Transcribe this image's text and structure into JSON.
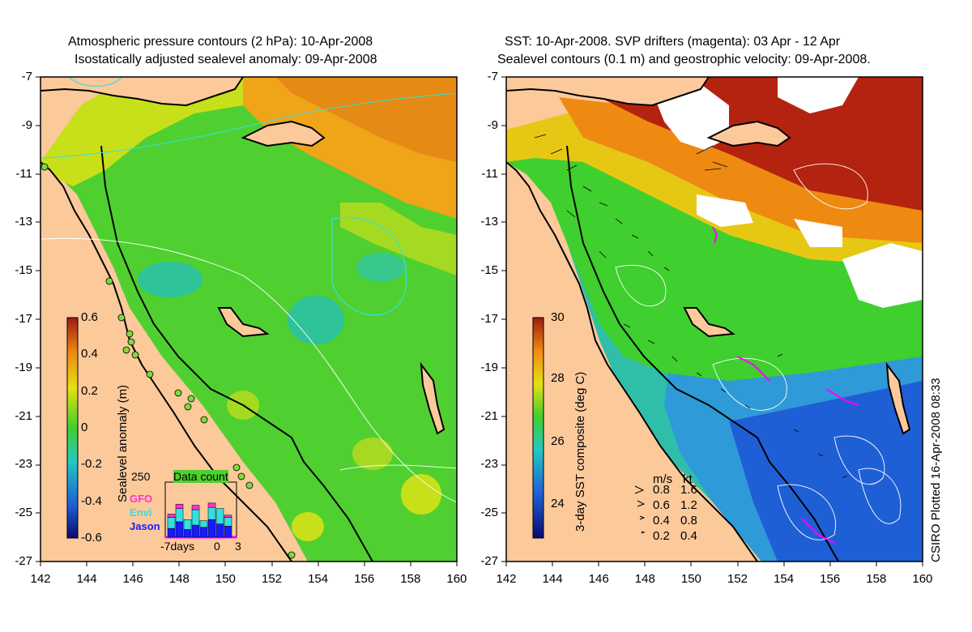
{
  "left_panel": {
    "title_line1": "Atmospheric pressure contours (2 hPa): 10-Apr-2008",
    "title_line2": "Isostatically adjusted sealevel anomaly: 09-Apr-2008",
    "colorbar_label": "Sealevel anomaly (m)",
    "colorbar_ticks": [
      "0.6",
      "0.4",
      "0.2",
      "0",
      "-0.2",
      "-0.4",
      "-0.6"
    ],
    "inset": {
      "title": "Data count",
      "ymax_label": "250",
      "series": [
        {
          "name": "GFO",
          "color": "#ff33cc"
        },
        {
          "name": "Envi",
          "color": "#33e0e0"
        },
        {
          "name": "Jason",
          "color": "#1a1aff"
        }
      ],
      "x_labels": [
        "-7days",
        "0",
        "3"
      ],
      "bars": [
        {
          "jason": 40,
          "envi": 50,
          "gfo": 15
        },
        {
          "jason": 70,
          "envi": 60,
          "gfo": 20
        },
        {
          "jason": 35,
          "envi": 45,
          "gfo": 0
        },
        {
          "jason": 55,
          "envi": 70,
          "gfo": 20
        },
        {
          "jason": 45,
          "envi": 30,
          "gfo": 0
        },
        {
          "jason": 80,
          "envi": 55,
          "gfo": 20
        },
        {
          "jason": 60,
          "envi": 70,
          "gfo": 0
        },
        {
          "jason": 50,
          "envi": 40,
          "gfo": 10
        }
      ]
    }
  },
  "right_panel": {
    "title_line1": "SST: 10-Apr-2008. SVP drifters (magenta): 03 Apr - 12 Apr",
    "title_line2": "Sealevel contours (0.1 m) and geostrophic velocity: 09-Apr-2008.",
    "colorbar_label": "3-day SST composite (deg C)",
    "colorbar_ticks": [
      "30",
      "28",
      "26",
      "24"
    ],
    "velocity_legend": {
      "header_ms": "m/s",
      "header_kt": "kt",
      "rows": [
        {
          "ms": "0.8",
          "kt": "1.6"
        },
        {
          "ms": "0.6",
          "kt": "1.2"
        },
        {
          "ms": "0.4",
          "kt": "0.8"
        },
        {
          "ms": "0.2",
          "kt": "0.4"
        }
      ]
    },
    "credit": "CSIRO Plotted 16-Apr-2008 08:33"
  },
  "axes": {
    "y_ticks": [
      "-7",
      "-9",
      "-11",
      "-13",
      "-15",
      "-17",
      "-19",
      "-21",
      "-23",
      "-25",
      "-27"
    ],
    "x_ticks": [
      "142",
      "144",
      "146",
      "148",
      "150",
      "152",
      "154",
      "156",
      "158",
      "160"
    ]
  },
  "colors": {
    "land": "#fcc99b",
    "coast": "#000000",
    "ssla_scale": [
      "#0a0a6e",
      "#1f5fd6",
      "#23c9c0",
      "#3fcf2e",
      "#e6e014",
      "#ee8a12",
      "#9c1b10"
    ],
    "sst_scale": [
      "#0a0a6e",
      "#1f5fd6",
      "#23c9c0",
      "#3fcf2e",
      "#e6e014",
      "#ee8a12",
      "#9c1b10"
    ],
    "drifter": "#ff00ff"
  }
}
